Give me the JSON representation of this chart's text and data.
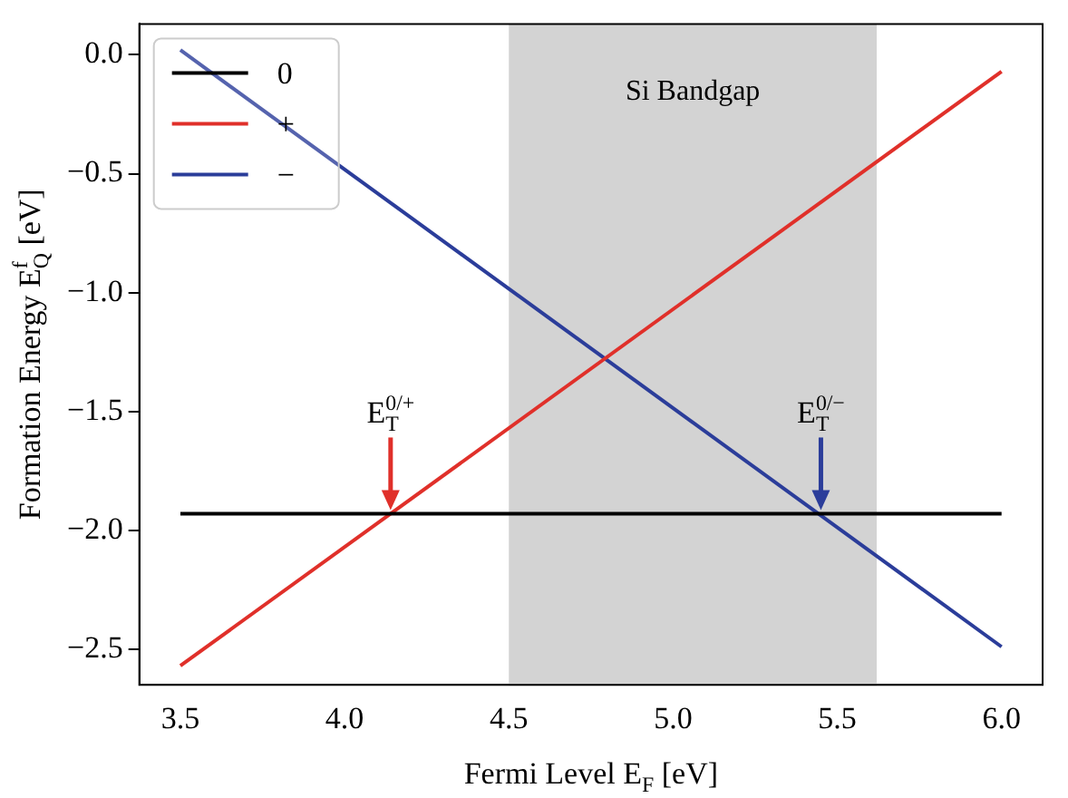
{
  "chart_data": {
    "type": "line",
    "xlabel": "Fermi Level E$_{F}$ [eV]",
    "ylabel": "Formation Energy E$_{Q}$$^{f}$ [eV]",
    "x": [
      3.5,
      6.0
    ],
    "series": [
      {
        "name": "0",
        "color": "#000000",
        "values": [
          -1.93,
          -1.93
        ]
      },
      {
        "name": "+",
        "color": "#e0302a",
        "values": [
          -2.57,
          -0.07
        ]
      },
      {
        "name": "−",
        "color": "#2b3d9a",
        "values": [
          0.02,
          -2.49
        ]
      }
    ],
    "xlim": [
      3.375,
      6.125
    ],
    "xticks": [
      3.5,
      {
        "value": 4,
        "label": "4.0"
      },
      4.5,
      {
        "value": 5,
        "label": "5.0"
      },
      5.5,
      {
        "value": 6,
        "label": "6.0"
      }
    ],
    "ylim": [
      -2.65,
      0.13
    ],
    "yticks": [
      {
        "value": -2.5,
        "label": "−2.5"
      },
      {
        "value": -2.0,
        "label": "−2.0"
      },
      {
        "value": -1.5,
        "label": "−1.5"
      },
      {
        "value": -1.0,
        "label": "−1.0"
      },
      {
        "value": -0.5,
        "label": "−0.5"
      },
      {
        "value": 0.0,
        "label": "0.0"
      }
    ],
    "bands": [
      {
        "axis": "x",
        "from": 4.5,
        "to": 5.62,
        "label": "Si Bandgap",
        "color": "#d3d3d3"
      }
    ],
    "annotations": [
      {
        "text": "E$_{T}$$^{0/+}$",
        "x": 4.14,
        "y": -1.93
      },
      {
        "text": "E$_{T}$$^{0/−}$",
        "x": 5.45,
        "y": -1.93
      }
    ],
    "legend": "top left",
    "grid": false,
    "marker": "none",
    "line_style": "solid"
  }
}
